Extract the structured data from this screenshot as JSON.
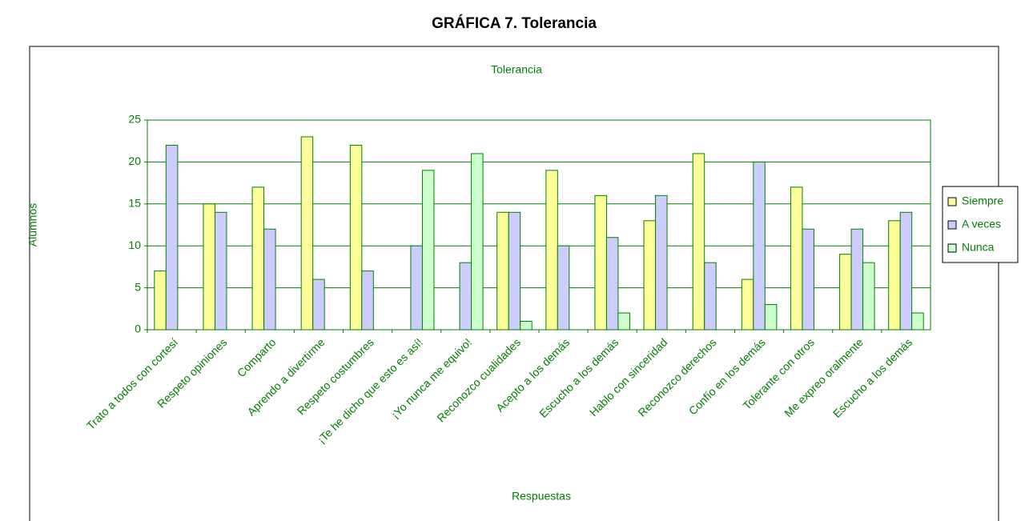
{
  "header": {
    "title": "GRÁFICA 7. Tolerancia"
  },
  "chart_data": {
    "type": "bar",
    "title": "Tolerancia",
    "ylabel": "Alumnos",
    "xlabel": "Respuestas",
    "categories": [
      "Trato a todos con cortesí",
      "Respeto opiniones",
      "Comparto",
      "Aprendo a divertirme",
      "Respeto costumbres",
      "¡Te he dicho que esto es así!",
      "¡Yo nunca me equivo!",
      "Reconozco cualidades",
      "Acepto a los demás",
      "Escucho a los demás",
      "Hablo con sinceridad",
      "Reconozco derechos",
      "Confío en los demás",
      "Tolerante con otros",
      "Me expreo oralmente",
      "Escucho a los demás"
    ],
    "series": [
      {
        "name": "Siempre",
        "color": "#ffff99",
        "values": [
          7,
          15,
          17,
          23,
          22,
          0,
          0,
          14,
          19,
          16,
          13,
          21,
          6,
          17,
          9,
          13
        ]
      },
      {
        "name": "A veces",
        "color": "#ccccff",
        "values": [
          22,
          14,
          12,
          6,
          7,
          10,
          8,
          14,
          10,
          11,
          16,
          8,
          20,
          12,
          12,
          14
        ]
      },
      {
        "name": "Nunca",
        "color": "#ccffcc",
        "values": [
          0,
          0,
          0,
          0,
          0,
          19,
          21,
          1,
          0,
          2,
          0,
          0,
          3,
          0,
          8,
          2
        ]
      }
    ],
    "ylim": [
      0,
      25
    ],
    "yticks": [
      0,
      5,
      10,
      15,
      20,
      25
    ],
    "grid": true,
    "legend": "right"
  }
}
